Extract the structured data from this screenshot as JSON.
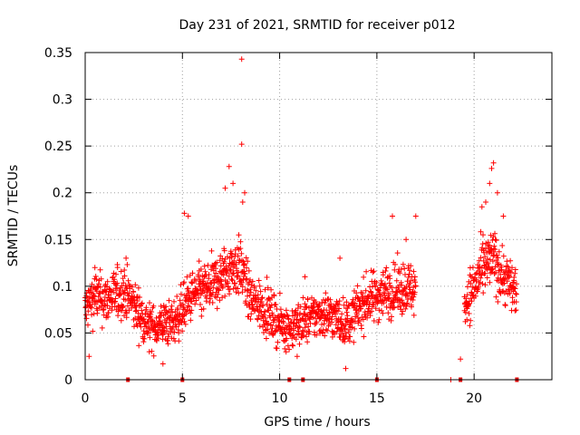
{
  "chart_data": {
    "type": "scatter",
    "title": "Day 231 of 2021, SRMTID for receiver p012",
    "xlabel": "GPS time / hours",
    "ylabel": "SRMTID / TECUs",
    "xlim": [
      0,
      24
    ],
    "ylim": [
      0,
      0.35
    ],
    "xticks": [
      0,
      5,
      10,
      15,
      20
    ],
    "yticks": [
      0,
      0.05,
      0.1,
      0.15,
      0.2,
      0.25,
      0.3,
      0.35
    ],
    "xtick_labels": [
      "0",
      "5",
      "10",
      "15",
      "20"
    ],
    "ytick_labels": [
      "0",
      "0.05",
      "0.1",
      "0.15",
      "0.2",
      "0.25",
      "0.3",
      "0.35"
    ],
    "grid": true,
    "marker_color": "#ff0000",
    "bottom_markers": [
      2.2,
      5.0,
      10.5,
      11.2,
      15.0,
      19.3,
      22.2
    ],
    "trend": [
      [
        0.0,
        0.075
      ],
      [
        0.5,
        0.09
      ],
      [
        1.0,
        0.085
      ],
      [
        1.5,
        0.09
      ],
      [
        2.0,
        0.095
      ],
      [
        2.5,
        0.08
      ],
      [
        3.0,
        0.065
      ],
      [
        3.5,
        0.055
      ],
      [
        4.0,
        0.06
      ],
      [
        4.5,
        0.06
      ],
      [
        5.0,
        0.075
      ],
      [
        5.5,
        0.09
      ],
      [
        6.0,
        0.095
      ],
      [
        6.5,
        0.1
      ],
      [
        7.0,
        0.11
      ],
      [
        7.5,
        0.12
      ],
      [
        8.0,
        0.12
      ],
      [
        8.5,
        0.085
      ],
      [
        9.0,
        0.08
      ],
      [
        9.5,
        0.07
      ],
      [
        10.0,
        0.06
      ],
      [
        10.5,
        0.055
      ],
      [
        11.0,
        0.06
      ],
      [
        11.5,
        0.065
      ],
      [
        12.0,
        0.07
      ],
      [
        12.5,
        0.07
      ],
      [
        13.0,
        0.065
      ],
      [
        13.5,
        0.06
      ],
      [
        14.0,
        0.075
      ],
      [
        14.5,
        0.085
      ],
      [
        15.0,
        0.09
      ],
      [
        15.5,
        0.095
      ],
      [
        16.0,
        0.095
      ],
      [
        16.5,
        0.1
      ],
      [
        17.0,
        0.095
      ],
      [
        19.5,
        0.08
      ],
      [
        20.0,
        0.1
      ],
      [
        20.5,
        0.12
      ],
      [
        21.0,
        0.13
      ],
      [
        21.5,
        0.11
      ],
      [
        22.2,
        0.095
      ]
    ],
    "highlights": [
      [
        8.05,
        0.343
      ],
      [
        8.05,
        0.252
      ],
      [
        7.4,
        0.228
      ],
      [
        7.6,
        0.21
      ],
      [
        8.2,
        0.2
      ],
      [
        7.2,
        0.205
      ],
      [
        8.1,
        0.19
      ],
      [
        21.0,
        0.232
      ],
      [
        20.9,
        0.226
      ],
      [
        20.8,
        0.21
      ],
      [
        21.2,
        0.2
      ],
      [
        20.6,
        0.19
      ],
      [
        20.4,
        0.185
      ],
      [
        21.5,
        0.175
      ],
      [
        16.5,
        0.15
      ],
      [
        17.0,
        0.175
      ],
      [
        5.1,
        0.178
      ],
      [
        5.3,
        0.175
      ],
      [
        13.4,
        0.012
      ],
      [
        4.0,
        0.017
      ],
      [
        19.3,
        0.022
      ],
      [
        0.2,
        0.025
      ],
      [
        3.3,
        0.03
      ],
      [
        10.9,
        0.025
      ],
      [
        15.8,
        0.175
      ],
      [
        0.5,
        0.12
      ],
      [
        2.1,
        0.13
      ],
      [
        11.3,
        0.11
      ],
      [
        13.1,
        0.13
      ],
      [
        18.8,
        0.0
      ]
    ]
  }
}
